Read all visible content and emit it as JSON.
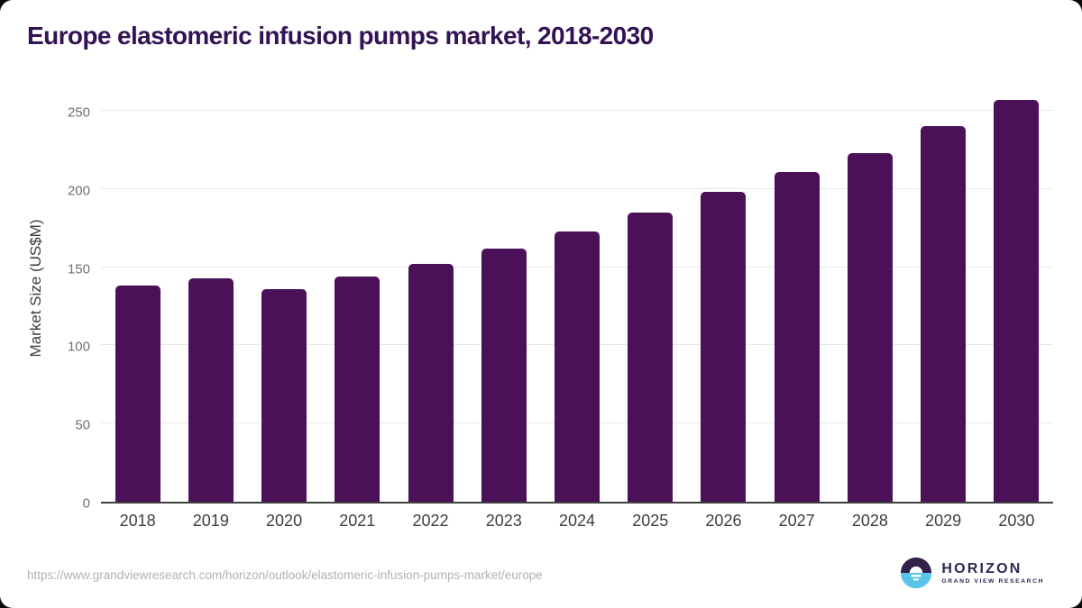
{
  "page": {
    "title": "Europe elastomeric infusion pumps market, 2018-2030",
    "source_url": "https://www.grandviewresearch.com/horizon/outlook/elastomeric-infusion-pumps-market/europe"
  },
  "branding": {
    "logo_name": "HORIZON",
    "logo_subtitle": "GRAND VIEW RESEARCH"
  },
  "colors": {
    "bar": "#4a1159",
    "title_text": "#331353",
    "axis_line": "#3f3f3f",
    "gridline": "#e9e9e9",
    "x_label": "#3e3e3e",
    "y_tick": "#6f6f6f",
    "url_text": "#b1b1b1",
    "logo_dark_half": "#332048",
    "logo_blue_half": "#5ac4ea",
    "logo_text": "#342452"
  },
  "chart_data": {
    "type": "bar",
    "title": "Europe elastomeric infusion pumps market, 2018-2030",
    "categories": [
      "2018",
      "2019",
      "2020",
      "2021",
      "2022",
      "2023",
      "2024",
      "2025",
      "2026",
      "2027",
      "2028",
      "2029",
      "2030"
    ],
    "values": [
      138,
      143,
      136,
      144,
      152,
      162,
      173,
      185,
      198,
      211,
      223,
      240,
      257
    ],
    "xlabel": "",
    "ylabel": "Market Size (US$M)",
    "ylim": [
      0,
      265
    ],
    "yticks": [
      0,
      50,
      100,
      150,
      200,
      250
    ],
    "grid": "horizontal-only",
    "legend": "none",
    "bar_color": "#4a1159",
    "units": "US$ million"
  }
}
